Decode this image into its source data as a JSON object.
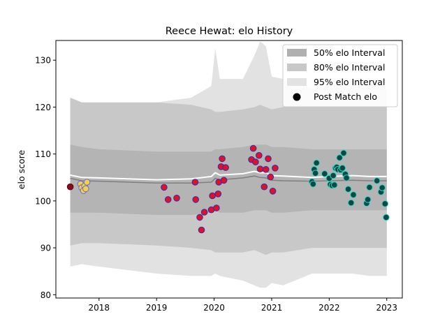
{
  "chart_data": {
    "type": "scatter",
    "title": "Reece Hewat: elo History",
    "xlabel": "",
    "ylabel": "elo score",
    "xlim": [
      2017.25,
      2023.27
    ],
    "ylim": [
      79.3,
      134.2
    ],
    "x_ticks": [
      2018,
      2019,
      2020,
      2021,
      2022,
      2023
    ],
    "x_tick_labels": [
      "2018",
      "2019",
      "2020",
      "2021",
      "2022",
      "2023"
    ],
    "y_ticks": [
      80,
      90,
      100,
      110,
      120,
      130
    ],
    "y_tick_labels": [
      "80",
      "90",
      "100",
      "110",
      "120",
      "130"
    ],
    "legend_position": "top-right",
    "legend": [
      {
        "label": "50% elo Interval",
        "color": "#b0b0b0",
        "kind": "patch"
      },
      {
        "label": "80% elo Interval",
        "color": "#c8c8c8",
        "kind": "patch"
      },
      {
        "label": "95% elo Interval",
        "color": "#e2e2e2",
        "kind": "patch"
      },
      {
        "label": "Post Match elo",
        "color": "#000000",
        "kind": "marker"
      }
    ],
    "colors": {
      "band95": "#e2e2e2",
      "band80": "#c8c8c8",
      "band50": "#b4b4b4",
      "median_line": "#7f7f7f",
      "mean_line": "#ffffff",
      "start_point": "#8b0a1e",
      "season_2017": "#f2d04a",
      "season_2017_edge": "#6a6ad8",
      "season_2019_2021": "#dd1030",
      "season_2019_2021_edge": "#3a2a9a",
      "season_2021_2023": "#0a4a45",
      "season_2021_2023_edge": "#3ad0c0"
    },
    "bands": {
      "x": [
        2017.5,
        2017.7,
        2018.0,
        2019.0,
        2019.6,
        2019.95,
        2020.02,
        2020.1,
        2020.5,
        2020.7,
        2020.8,
        2020.9,
        2021.0,
        2021.2,
        2021.7,
        2022.0,
        2022.4,
        2022.7,
        2023.0
      ],
      "p95_upper": [
        122.0,
        121.0,
        121.0,
        121.0,
        122.0,
        124.5,
        132.5,
        126.0,
        126.0,
        131.0,
        134.0,
        133.0,
        126.5,
        126.0,
        124.0,
        124.0,
        124.0,
        124.0,
        124.0
      ],
      "p95_lower": [
        86.0,
        86.5,
        86.0,
        84.5,
        84.0,
        84.0,
        84.5,
        84.0,
        83.0,
        82.0,
        81.5,
        81.5,
        82.5,
        82.0,
        84.5,
        84.5,
        84.5,
        84.0,
        84.0
      ],
      "p80_upper": [
        122.0,
        121.0,
        121.0,
        121.0,
        120.5,
        119.5,
        119.0,
        119.0,
        119.5,
        120.0,
        120.5,
        120.0,
        119.5,
        120.0,
        120.0,
        120.0,
        120.0,
        120.0,
        120.0
      ],
      "p80_lower": [
        90.5,
        91.0,
        91.0,
        90.5,
        90.0,
        89.5,
        89.0,
        89.0,
        89.0,
        89.5,
        89.0,
        88.5,
        89.0,
        89.0,
        90.0,
        90.0,
        90.0,
        90.0,
        90.0
      ],
      "p50_upper": [
        112.0,
        111.5,
        111.0,
        110.5,
        110.5,
        110.5,
        111.0,
        111.0,
        111.5,
        112.0,
        112.0,
        112.0,
        111.5,
        111.5,
        111.0,
        111.0,
        111.0,
        111.0,
        111.0
      ],
      "p50_lower": [
        97.5,
        97.5,
        97.5,
        97.0,
        97.0,
        97.5,
        98.0,
        97.5,
        97.5,
        98.0,
        98.0,
        98.0,
        97.5,
        97.5,
        98.0,
        98.0,
        98.0,
        98.0,
        98.0
      ],
      "median": [
        104.8,
        104.3,
        104.2,
        103.8,
        103.8,
        104.0,
        104.8,
        104.5,
        104.9,
        105.3,
        105.0,
        104.9,
        104.4,
        104.3,
        104.2,
        104.3,
        104.4,
        104.3,
        104.3
      ],
      "mean": [
        105.5,
        105.0,
        104.9,
        104.5,
        104.7,
        105.2,
        106.0,
        105.5,
        105.8,
        106.3,
        106.0,
        106.0,
        105.4,
        105.3,
        105.0,
        105.2,
        105.4,
        105.2,
        105.2
      ]
    },
    "series": [
      {
        "color_key": "start_point",
        "points": [
          [
            2017.5,
            103.0
          ]
        ]
      },
      {
        "color_key": "season_2017",
        "points": [
          [
            2017.68,
            103.6
          ],
          [
            2017.7,
            102.8
          ],
          [
            2017.73,
            102.2
          ],
          [
            2017.75,
            103.2
          ],
          [
            2017.77,
            102.6
          ],
          [
            2017.79,
            104.0
          ]
        ]
      },
      {
        "color_key": "season_2019_2021",
        "points": [
          [
            2019.13,
            102.9
          ],
          [
            2019.2,
            100.3
          ],
          [
            2019.35,
            100.6
          ],
          [
            2019.67,
            104.0
          ],
          [
            2019.68,
            100.3
          ],
          [
            2019.75,
            96.5
          ],
          [
            2019.78,
            93.8
          ],
          [
            2019.83,
            97.6
          ],
          [
            2019.95,
            98.1
          ],
          [
            2019.97,
            101.1
          ],
          [
            2020.04,
            98.5
          ],
          [
            2020.07,
            101.5
          ],
          [
            2020.08,
            104.0
          ],
          [
            2020.12,
            107.3
          ],
          [
            2020.14,
            109.0
          ],
          [
            2020.17,
            104.4
          ],
          [
            2020.2,
            107.1
          ],
          [
            2020.65,
            108.8
          ],
          [
            2020.68,
            111.2
          ],
          [
            2020.72,
            108.3
          ],
          [
            2020.78,
            109.7
          ],
          [
            2020.8,
            106.8
          ],
          [
            2020.87,
            103.0
          ],
          [
            2020.9,
            106.7
          ],
          [
            2020.94,
            109.0
          ],
          [
            2020.98,
            105.1
          ],
          [
            2021.02,
            102.1
          ],
          [
            2021.06,
            107.0
          ]
        ]
      },
      {
        "color_key": "season_2021_2023",
        "points": [
          [
            2021.7,
            104.1
          ],
          [
            2021.72,
            103.6
          ],
          [
            2021.74,
            106.7
          ],
          [
            2021.76,
            105.9
          ],
          [
            2021.78,
            108.1
          ],
          [
            2021.92,
            105.8
          ],
          [
            2022.0,
            104.8
          ],
          [
            2022.02,
            103.5
          ],
          [
            2022.05,
            103.3
          ],
          [
            2022.07,
            105.4
          ],
          [
            2022.09,
            103.4
          ],
          [
            2022.11,
            107.0
          ],
          [
            2022.13,
            107.2
          ],
          [
            2022.15,
            106.7
          ],
          [
            2022.18,
            109.2
          ],
          [
            2022.2,
            106.6
          ],
          [
            2022.23,
            107.0
          ],
          [
            2022.25,
            110.2
          ],
          [
            2022.28,
            105.7
          ],
          [
            2022.3,
            104.9
          ],
          [
            2022.33,
            102.5
          ],
          [
            2022.38,
            99.6
          ],
          [
            2022.42,
            101.3
          ],
          [
            2022.65,
            99.5
          ],
          [
            2022.67,
            100.3
          ],
          [
            2022.7,
            102.9
          ],
          [
            2022.83,
            104.3
          ],
          [
            2022.9,
            101.9
          ],
          [
            2022.92,
            102.8
          ],
          [
            2022.97,
            99.4
          ],
          [
            2022.99,
            96.5
          ]
        ]
      }
    ]
  }
}
